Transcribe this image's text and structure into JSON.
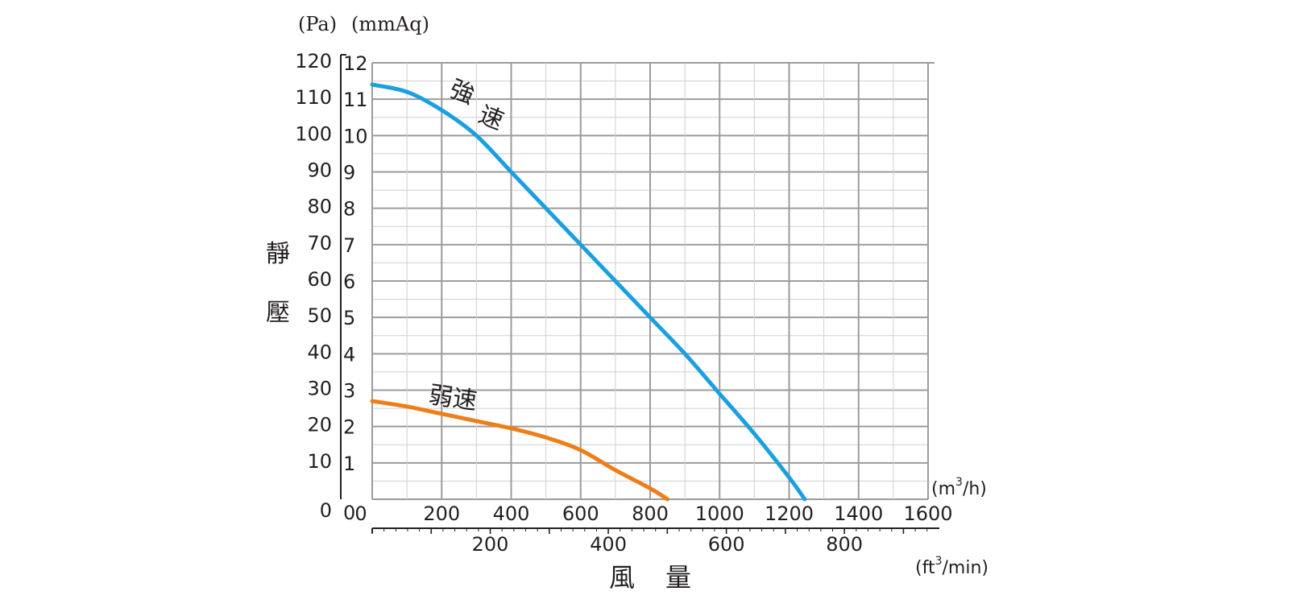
{
  "chart_data": {
    "type": "line",
    "title": "",
    "xlabel": "風  量",
    "ylabel": "靜壓",
    "units": {
      "y_left": "(Pa)",
      "y_right": "(mmAq)",
      "x_top": "(m³/h)",
      "x_bottom": "(ft³/min)"
    },
    "unit_parts": {
      "m3h_pre": "(m",
      "m3h_sup": "3",
      "m3h_post": "/h)",
      "ft3_pre": "(ft",
      "ft3_sup": "3",
      "ft3_post": "/min)"
    },
    "ylabel_chars": [
      "靜",
      "壓"
    ],
    "xlabel_chars": [
      "風",
      "量"
    ],
    "y_pa_ticks": [
      "0",
      "10",
      "20",
      "30",
      "40",
      "50",
      "60",
      "70",
      "80",
      "90",
      "100",
      "110",
      "120"
    ],
    "y_mmaq_ticks": [
      "0",
      "1",
      "2",
      "3",
      "4",
      "5",
      "6",
      "7",
      "8",
      "9",
      "10",
      "11",
      "12"
    ],
    "x_m3h_ticks": [
      "0",
      "200",
      "400",
      "600",
      "800",
      "1000",
      "1200",
      "1400",
      "1600"
    ],
    "x_cfm_ticks": [
      "200",
      "400",
      "600",
      "800"
    ],
    "xlim_m3h": [
      0,
      1600
    ],
    "ylim_pa": [
      0,
      120
    ],
    "grid": true,
    "series": [
      {
        "name": "強速",
        "color": "#1aa0e0",
        "x": [
          0,
          100,
          200,
          300,
          400,
          500,
          600,
          700,
          800,
          900,
          1000,
          1100,
          1200,
          1245
        ],
        "y": [
          114,
          112,
          107,
          100,
          90,
          80,
          70,
          60,
          50,
          40,
          29,
          18,
          6,
          0
        ]
      },
      {
        "name": "弱速",
        "color": "#ef7d18",
        "x": [
          0,
          100,
          200,
          300,
          400,
          500,
          600,
          700,
          800,
          850
        ],
        "y": [
          27,
          25.5,
          23.5,
          21.5,
          19.5,
          17,
          13.5,
          8,
          3,
          0
        ]
      }
    ],
    "series_labels": [
      "強",
      "速",
      "弱速"
    ]
  }
}
